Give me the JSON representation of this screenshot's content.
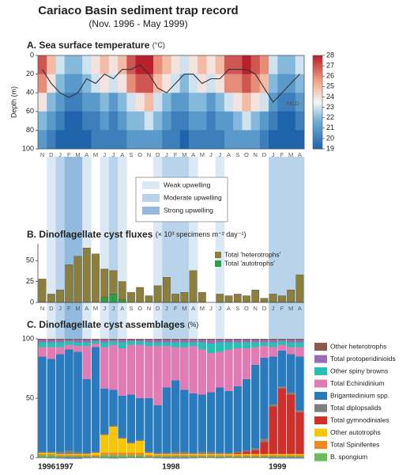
{
  "title": "Cariaco Basin sediment trap record",
  "subtitle": "(Nov. 1996 -  May 1999)",
  "upwelling": {
    "legend": [
      "Weak upwelling",
      "Moderate upwelling",
      "Strong upwelling"
    ],
    "colors": [
      "#dbe9f5",
      "#b9d3ea",
      "#93b9dc"
    ],
    "levels": [
      0,
      1,
      2,
      3,
      3,
      1,
      0,
      1,
      2,
      1,
      0,
      0,
      0,
      1,
      2,
      2,
      2,
      1,
      0,
      0,
      1,
      0,
      0,
      0,
      0,
      0,
      2,
      2,
      2,
      2
    ]
  },
  "chart_data": [
    {
      "type": "heatmap",
      "title": "A. Sea surface temperature",
      "units": "(°C)",
      "ylabel": "Depth (m)",
      "categories": [
        "N",
        "D",
        "J",
        "F",
        "M",
        "A",
        "M",
        "J",
        "J",
        "A",
        "S",
        "O",
        "N",
        "D",
        "J",
        "F",
        "M",
        "A",
        "M",
        "J",
        "J",
        "A",
        "S",
        "O",
        "N",
        "D",
        "J",
        "F",
        "M",
        "A"
      ],
      "depths": [
        10,
        30,
        50,
        70,
        90
      ],
      "z": [
        [
          27,
          25,
          23,
          22,
          22,
          23,
          24,
          25,
          24,
          25,
          27,
          28,
          28,
          26,
          25,
          24,
          23,
          24,
          25,
          24,
          25,
          27,
          27,
          28,
          27,
          26,
          23,
          22,
          22,
          23
        ],
        [
          26,
          24,
          22,
          21,
          21,
          22,
          23,
          24,
          23,
          24,
          26,
          27,
          27,
          25,
          24,
          23,
          22,
          23,
          24,
          23,
          24,
          26,
          26,
          27,
          26,
          25,
          22,
          21,
          21,
          22
        ],
        [
          24,
          22,
          21,
          20,
          20,
          21,
          21,
          22,
          21,
          22,
          23,
          24,
          25,
          23,
          22,
          21,
          21,
          22,
          22,
          21,
          22,
          23,
          24,
          25,
          24,
          23,
          21,
          20,
          20,
          21
        ],
        [
          22,
          21,
          20,
          19,
          19,
          20,
          20,
          21,
          20,
          21,
          22,
          22,
          23,
          22,
          21,
          20,
          20,
          21,
          21,
          20,
          21,
          21,
          22,
          23,
          22,
          21,
          20,
          19,
          19,
          20
        ],
        [
          21,
          20,
          19,
          19,
          19,
          19,
          20,
          20,
          20,
          20,
          21,
          21,
          21,
          21,
          20,
          20,
          19,
          20,
          20,
          20,
          20,
          21,
          21,
          21,
          21,
          20,
          19,
          19,
          19,
          19
        ]
      ],
      "ylim": [
        0,
        100
      ],
      "yticks": [
        0,
        20,
        40,
        60,
        80,
        100
      ],
      "zlim": [
        19,
        28
      ],
      "zticks": [
        19,
        20,
        21,
        22,
        23,
        24,
        25,
        26,
        27,
        28
      ],
      "mld": {
        "label": "MLD",
        "values": [
          15,
          30,
          40,
          45,
          40,
          25,
          30,
          20,
          25,
          15,
          15,
          10,
          20,
          35,
          40,
          30,
          20,
          20,
          30,
          25,
          25,
          15,
          15,
          15,
          20,
          35,
          50,
          40,
          30,
          20
        ]
      }
    },
    {
      "type": "bar",
      "title": "B. Dinoflagellate cyst fluxes",
      "units": "(× 10³ specimens m⁻² day⁻¹)",
      "categories": [
        "N",
        "D",
        "J",
        "F",
        "M",
        "A",
        "M",
        "J",
        "J",
        "A",
        "S",
        "O",
        "N",
        "D",
        "J",
        "F",
        "M",
        "A",
        "M",
        "J",
        "J",
        "A",
        "S",
        "O",
        "N",
        "D",
        "J",
        "F",
        "M",
        "A"
      ],
      "series": [
        {
          "name": "Total 'heterotrophs'",
          "color": "#8c7f3c",
          "values": [
            28,
            10,
            15,
            45,
            55,
            65,
            58,
            40,
            38,
            25,
            12,
            18,
            8,
            20,
            30,
            10,
            12,
            38,
            12,
            null,
            10,
            8,
            10,
            8,
            15,
            5,
            10,
            8,
            15,
            33
          ]
        },
        {
          "name": "Total 'autotrophs'",
          "color": "#2aa243",
          "values": [
            0,
            0,
            0,
            0,
            0,
            0,
            0,
            6,
            10,
            3,
            0,
            0,
            0,
            0,
            0,
            0,
            0,
            0,
            0,
            null,
            0,
            0,
            0,
            0,
            0,
            0,
            0,
            0,
            0,
            0
          ]
        }
      ],
      "ylim": [
        0,
        70
      ],
      "yticks": [
        0,
        25,
        50
      ]
    },
    {
      "type": "stacked_bar",
      "title": "C. Dinoflagellate cyst assemblages",
      "units": "(%)",
      "year_labels": [
        "1996",
        null,
        "1997",
        null,
        null,
        null,
        null,
        null,
        null,
        null,
        null,
        null,
        null,
        null,
        "1998",
        null,
        null,
        null,
        null,
        null,
        null,
        null,
        null,
        null,
        null,
        null,
        "1999",
        null,
        null,
        null
      ],
      "series": [
        {
          "name": "B. spongium",
          "color": "#6dbb5a",
          "values": [
            2,
            2,
            1,
            1,
            1,
            1,
            1,
            2,
            2,
            2,
            2,
            2,
            1,
            1,
            1,
            1,
            1,
            1,
            1,
            1,
            1,
            1,
            1,
            1,
            1,
            1,
            1,
            1,
            1,
            1
          ]
        },
        {
          "name": "Total Spiniferites",
          "color": "#f08a1e",
          "values": [
            1,
            1,
            1,
            1,
            1,
            1,
            1,
            2,
            2,
            2,
            2,
            2,
            1,
            1,
            1,
            1,
            1,
            1,
            1,
            1,
            1,
            1,
            1,
            1,
            1,
            1,
            1,
            1,
            1,
            1
          ]
        },
        {
          "name": "Other autotrophs",
          "color": "#f7c600",
          "values": [
            1,
            1,
            1,
            1,
            1,
            1,
            2,
            15,
            22,
            12,
            8,
            10,
            2,
            1,
            1,
            1,
            1,
            1,
            1,
            1,
            1,
            1,
            1,
            1,
            1,
            1,
            1,
            1,
            1,
            1
          ]
        },
        {
          "name": "Total gymnodiniales",
          "color": "#d0302a",
          "values": [
            0,
            0,
            0,
            0,
            0,
            0,
            0,
            0,
            0,
            0,
            0,
            0,
            0,
            0,
            0,
            0,
            0,
            0,
            0,
            0,
            0,
            0,
            1,
            2,
            3,
            10,
            40,
            55,
            50,
            35
          ]
        },
        {
          "name": "Total diplopsalids",
          "color": "#7f7f7f",
          "values": [
            1,
            1,
            2,
            3,
            2,
            1,
            1,
            1,
            1,
            1,
            1,
            1,
            1,
            1,
            1,
            2,
            2,
            1,
            2,
            2,
            1,
            1,
            1,
            1,
            2,
            3,
            2,
            2,
            2,
            2
          ]
        },
        {
          "name": "Brigantedinium spp.",
          "color": "#2a7bbd",
          "values": [
            80,
            78,
            82,
            85,
            84,
            62,
            88,
            38,
            30,
            35,
            40,
            35,
            45,
            40,
            55,
            60,
            52,
            50,
            48,
            50,
            55,
            52,
            55,
            60,
            70,
            68,
            40,
            30,
            32,
            45
          ]
        },
        {
          "name": "Total Echinidinium",
          "color": "#e27bb4",
          "values": [
            8,
            10,
            6,
            4,
            5,
            28,
            3,
            35,
            38,
            40,
            42,
            45,
            44,
            50,
            35,
            28,
            36,
            40,
            38,
            33,
            30,
            35,
            32,
            26,
            15,
            10,
            8,
            5,
            6,
            8
          ]
        },
        {
          "name": "Other spiny browns",
          "color": "#27c0b2",
          "values": [
            4,
            4,
            4,
            3,
            3,
            3,
            2,
            4,
            3,
            5,
            3,
            3,
            3,
            3,
            3,
            4,
            4,
            3,
            6,
            8,
            8,
            6,
            5,
            5,
            4,
            3,
            4,
            3,
            4,
            4
          ]
        },
        {
          "name": "Total protoperidinioids",
          "color": "#9a6cb8",
          "values": [
            2,
            2,
            2,
            1,
            2,
            2,
            1,
            2,
            1,
            2,
            1,
            1,
            2,
            2,
            2,
            2,
            2,
            2,
            2,
            3,
            2,
            2,
            2,
            2,
            2,
            2,
            2,
            1,
            2,
            2
          ]
        },
        {
          "name": "Other heterotrophs",
          "color": "#8b5a4b",
          "values": [
            1,
            1,
            1,
            1,
            1,
            1,
            1,
            1,
            1,
            1,
            1,
            1,
            1,
            1,
            1,
            1,
            1,
            1,
            1,
            1,
            1,
            1,
            1,
            1,
            1,
            1,
            1,
            1,
            1,
            1
          ]
        }
      ],
      "ylim": [
        0,
        100
      ],
      "yticks": [
        0,
        50,
        100
      ]
    }
  ]
}
